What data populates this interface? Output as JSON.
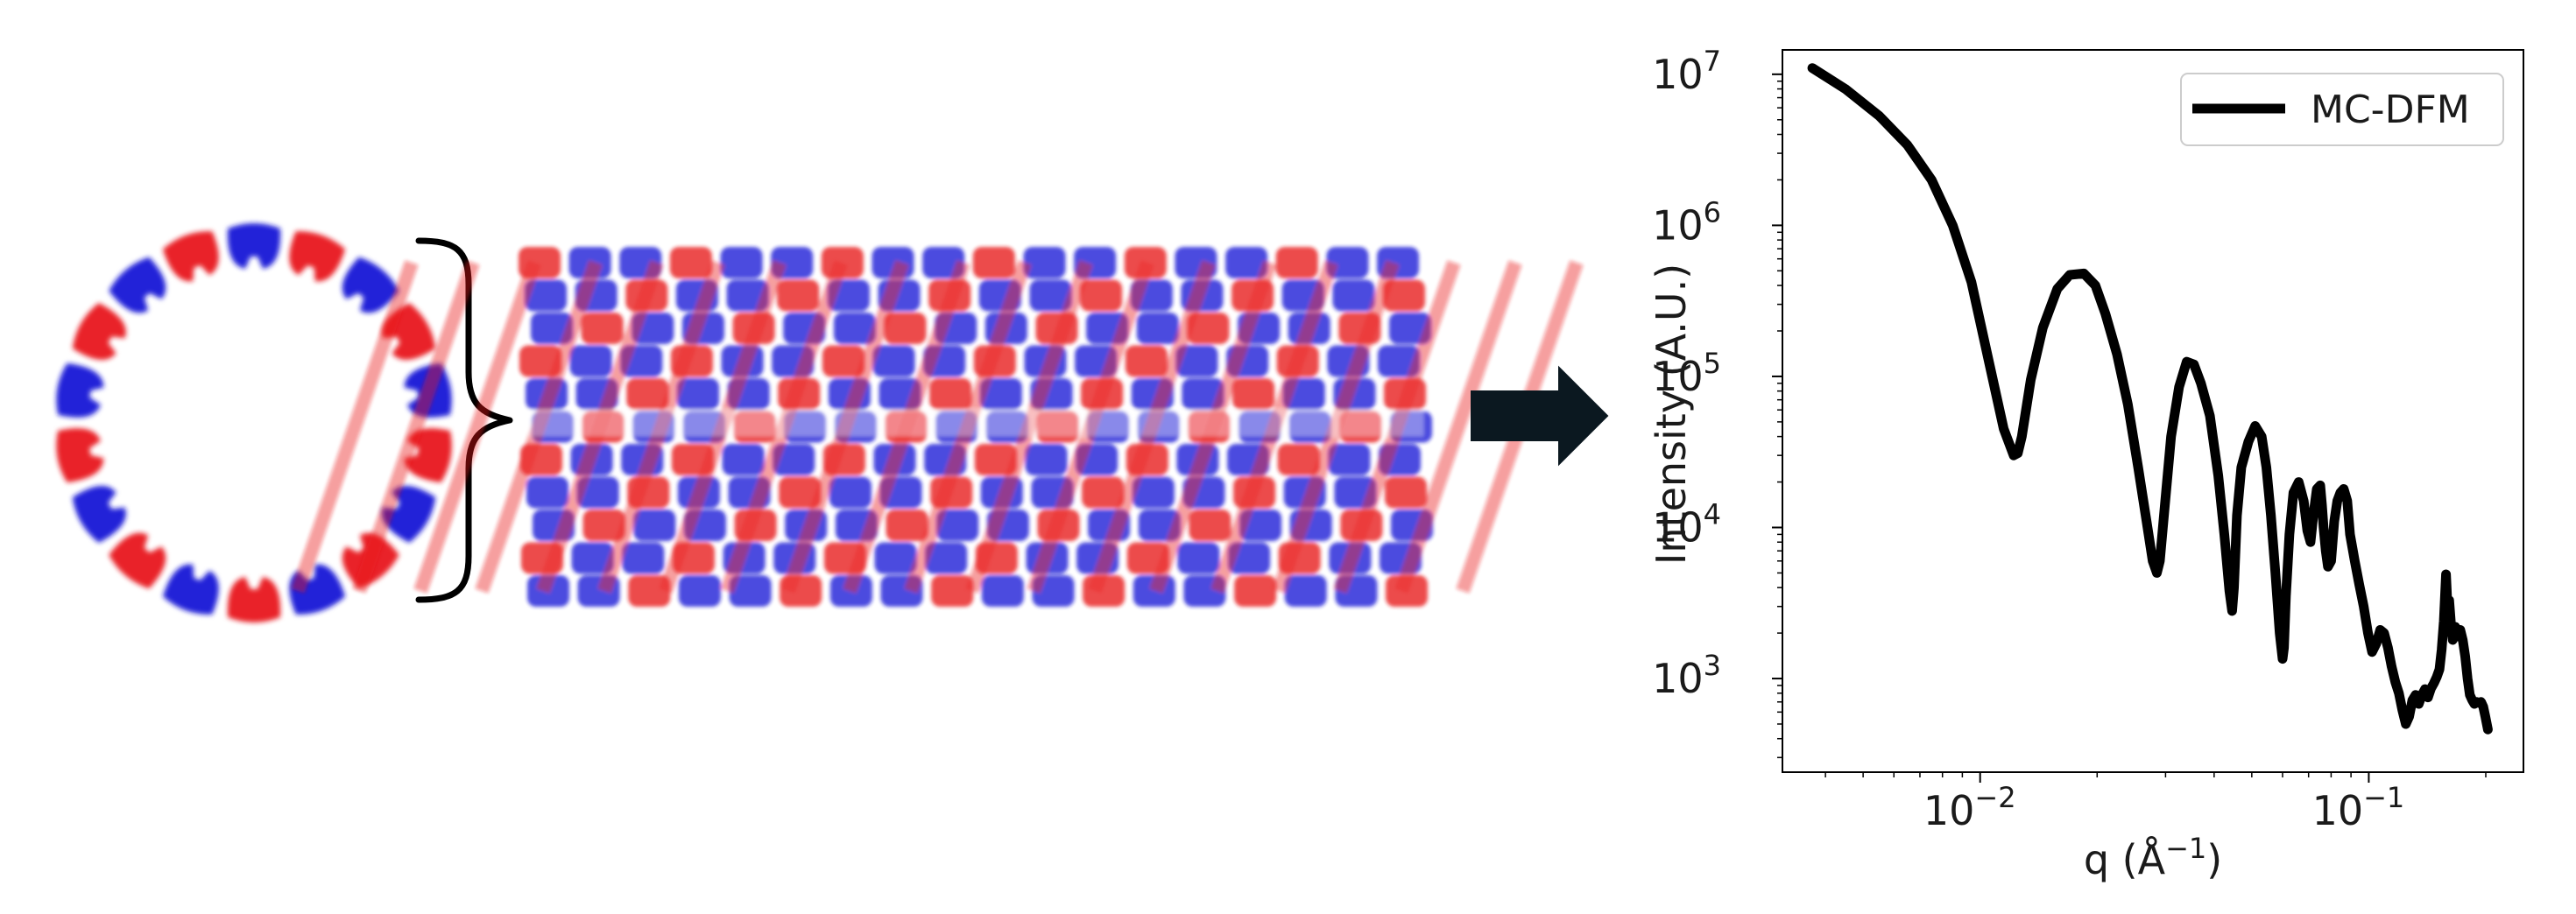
{
  "colors": {
    "red": "#e8141b",
    "blue": "#1717d6",
    "arrow": "#0b1820",
    "line": "#000000"
  },
  "illustration": {
    "ring_subunits": 18,
    "tube_columns": 18,
    "tube_rows": 11
  },
  "chart_data": {
    "type": "line",
    "title": "",
    "xlabel": "q (Å",
    "xlabel_exponent": "−1",
    "xlabel_suffix": ")",
    "ylabel": "Intensity (A.U.)",
    "xscale": "log",
    "yscale": "log",
    "xlim": [
      0.0031,
      0.25
    ],
    "ylim": [
      240,
      14500000
    ],
    "xticks": [
      {
        "value": 0.01,
        "base": "10",
        "exp": "−2"
      },
      {
        "value": 0.1,
        "base": "10",
        "exp": "−1"
      }
    ],
    "yticks": [
      {
        "value": 1000,
        "base": "10",
        "exp": "3"
      },
      {
        "value": 10000,
        "base": "10",
        "exp": "4"
      },
      {
        "value": 100000,
        "base": "10",
        "exp": "5"
      },
      {
        "value": 1000000,
        "base": "10",
        "exp": "6"
      },
      {
        "value": 10000000,
        "base": "10",
        "exp": "7"
      }
    ],
    "grid": false,
    "legend": {
      "position": "top-right",
      "entries": [
        "MC-DFM"
      ]
    },
    "series": [
      {
        "name": "MC-DFM",
        "x": [
          0.0037,
          0.0045,
          0.0055,
          0.0065,
          0.0075,
          0.0085,
          0.0095,
          0.0105,
          0.0115,
          0.0122,
          0.0125,
          0.0128,
          0.0135,
          0.0145,
          0.0158,
          0.017,
          0.0185,
          0.0198,
          0.021,
          0.0225,
          0.024,
          0.0255,
          0.0268,
          0.0278,
          0.0285,
          0.029,
          0.0298,
          0.031,
          0.0325,
          0.034,
          0.0355,
          0.037,
          0.039,
          0.041,
          0.0425,
          0.0438,
          0.0445,
          0.045,
          0.0458,
          0.047,
          0.049,
          0.051,
          0.053,
          0.0545,
          0.056,
          0.0575,
          0.059,
          0.06,
          0.0605,
          0.0612,
          0.0625,
          0.064,
          0.066,
          0.068,
          0.0695,
          0.0708,
          0.072,
          0.0735,
          0.075,
          0.0758,
          0.0765,
          0.0775,
          0.0785,
          0.08,
          0.0815,
          0.083,
          0.0845,
          0.0862,
          0.088,
          0.0895,
          0.092,
          0.0945,
          0.097,
          0.0995,
          0.102,
          0.1045,
          0.107,
          0.1095,
          0.112,
          0.1145,
          0.117,
          0.1195,
          0.122,
          0.1245,
          0.127,
          0.1295,
          0.132,
          0.1345,
          0.137,
          0.1395,
          0.142,
          0.1445,
          0.147,
          0.1495,
          0.152,
          0.154,
          0.156,
          0.158,
          0.1595,
          0.161,
          0.1625,
          0.1645,
          0.167,
          0.1695,
          0.172,
          0.1745,
          0.177,
          0.1795,
          0.182,
          0.1845,
          0.187,
          0.1895,
          0.192,
          0.1945,
          0.197,
          0.1995,
          0.2025
        ],
        "y": [
          11000000,
          8000000,
          5300000,
          3400000,
          2000000,
          1000000,
          420000,
          130000,
          45000,
          30000,
          31000,
          40000,
          95000,
          210000,
          380000,
          470000,
          480000,
          400000,
          260000,
          140000,
          65000,
          25000,
          11000,
          6000,
          5000,
          6000,
          13000,
          40000,
          85000,
          125000,
          120000,
          90000,
          55000,
          22000,
          9000,
          3800,
          2800,
          4000,
          12000,
          25000,
          37000,
          47000,
          40000,
          25000,
          12000,
          5000,
          2000,
          1350,
          1600,
          3500,
          9000,
          17000,
          20000,
          15000,
          9500,
          8000,
          12000,
          18000,
          19000,
          14000,
          10000,
          7000,
          5500,
          6000,
          11000,
          15000,
          17000,
          18000,
          15000,
          9000,
          6000,
          4200,
          3000,
          2000,
          1500,
          1700,
          2100,
          2000,
          1600,
          1200,
          950,
          800,
          620,
          500,
          560,
          720,
          780,
          680,
          780,
          850,
          750,
          860,
          930,
          1020,
          1150,
          1550,
          2400,
          4900,
          2900,
          3300,
          2400,
          1800,
          2200,
          1900,
          2100,
          1800,
          1400,
          1000,
          780,
          720,
          680,
          700,
          690,
          700,
          650,
          560,
          460
        ]
      }
    ]
  }
}
